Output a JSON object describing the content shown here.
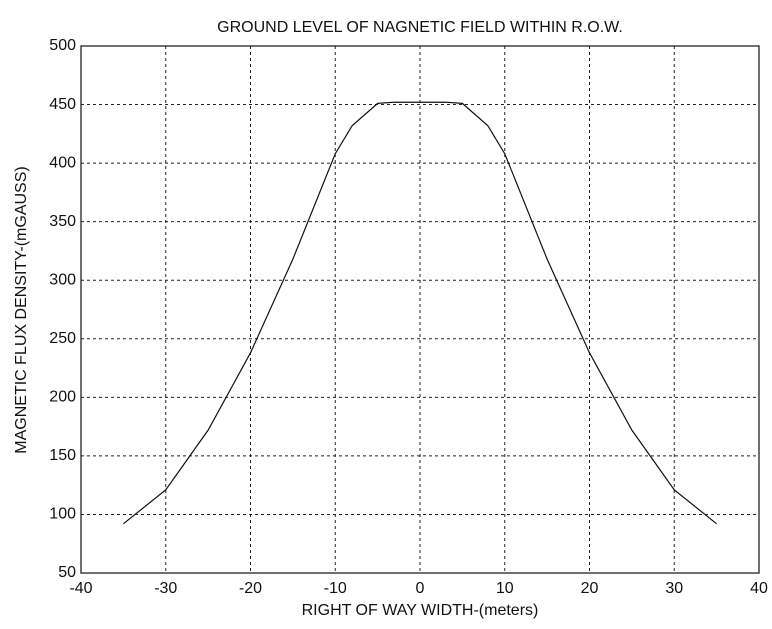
{
  "chart_data": {
    "type": "line",
    "title": "GROUND LEVEL OF NAGNETIC FIELD WITHIN R.O.W.",
    "xlabel": "RIGHT OF WAY WIDTH-(meters)",
    "ylabel": "MAGNETIC FLUX DENSITY-(mGAUSS)",
    "x": [
      -35,
      -30,
      -25,
      -20,
      -15,
      -10,
      -8,
      -5,
      -3,
      0,
      3,
      5,
      8,
      10,
      15,
      20,
      25,
      30,
      35
    ],
    "series": [
      {
        "color": "#111111",
        "values": [
          92,
          121,
          172,
          238,
          318,
          408,
          432,
          451,
          452,
          452,
          452,
          451,
          432,
          408,
          318,
          238,
          172,
          121,
          92
        ]
      }
    ],
    "xlim": [
      -40,
      40
    ],
    "xticks": [
      -40,
      -30,
      -20,
      -10,
      0,
      10,
      20,
      30,
      40
    ],
    "ylim": [
      50,
      500
    ],
    "yticks": [
      50,
      100,
      150,
      200,
      250,
      300,
      350,
      400,
      450,
      500
    ],
    "grid": true
  }
}
